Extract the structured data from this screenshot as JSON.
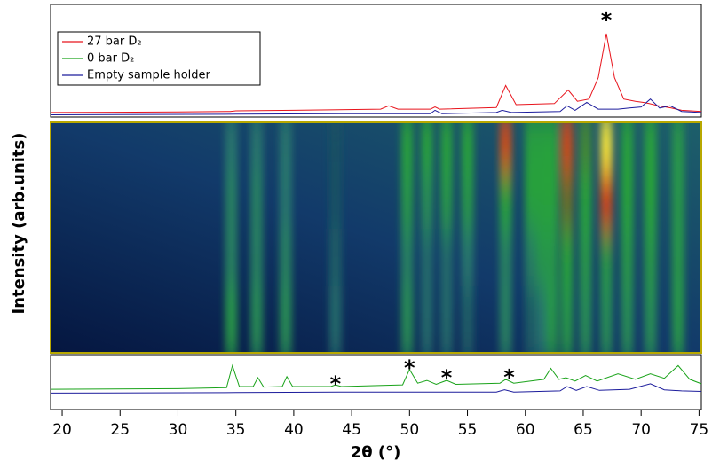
{
  "chart_data": {
    "type": "line",
    "xlabel": "2θ (°)",
    "ylabel": "Intensity (arb.units)",
    "xlim": [
      19,
      75.2
    ],
    "xticks": [
      20,
      25,
      30,
      35,
      40,
      45,
      50,
      55,
      60,
      65,
      70,
      75
    ],
    "ylim": [
      0,
      100
    ],
    "legend": "upper left",
    "series": [
      {
        "name": "27 bar D₂",
        "color": "#e8141c",
        "panel": "top",
        "x": [
          19,
          30,
          34.5,
          35,
          40,
          47.5,
          48.2,
          49,
          51.8,
          52.2,
          52.6,
          57.5,
          58.3,
          59.2,
          62.5,
          63.7,
          64.5,
          65.5,
          66.3,
          67,
          67.7,
          68.5,
          69.5,
          70.2,
          70.7,
          71.5,
          72.6,
          73.5,
          75.2
        ],
        "values": [
          4,
          4.5,
          5,
          5.5,
          6,
          7,
          10,
          7,
          7,
          9,
          7,
          8.5,
          28,
          11,
          12,
          24,
          14,
          16,
          35,
          74,
          35,
          16,
          14,
          13,
          12,
          10,
          8,
          6,
          5
        ]
      },
      {
        "name": "0 bar D₂",
        "color": "#1aa31a",
        "panel": "bottom",
        "x": [
          19,
          30,
          34.2,
          34.7,
          35.3,
          36.5,
          36.9,
          37.4,
          39,
          39.4,
          39.9,
          43.2,
          43.6,
          44.1,
          49.4,
          50,
          50.7,
          51.5,
          52.3,
          53.2,
          54,
          57.8,
          58.3,
          59,
          61.6,
          62.2,
          62.9,
          63.5,
          64.3,
          65.2,
          66.2,
          68,
          69.5,
          70.8,
          72,
          73.2,
          74.2,
          75.2
        ],
        "values": [
          37,
          38,
          40,
          80,
          42,
          42,
          58,
          41,
          42,
          60,
          42,
          42,
          45,
          42,
          45,
          73,
          48,
          53,
          46,
          53,
          46,
          48,
          55,
          48,
          55,
          75,
          55,
          58,
          52,
          62,
          52,
          65,
          55,
          65,
          57,
          80,
          55,
          47
        ]
      },
      {
        "name": "Empty sample holder",
        "color": "#1c1c9c",
        "panel": "top",
        "x": [
          19,
          35,
          45,
          51.8,
          52.2,
          52.8,
          57.5,
          58,
          58.8,
          63,
          63.6,
          64.3,
          65.3,
          66.3,
          68,
          69,
          70,
          70.8,
          71.6,
          72.5,
          73.5,
          75.2
        ],
        "values": [
          2,
          2.5,
          3,
          3,
          6,
          3,
          4,
          6,
          4,
          5,
          10,
          6,
          13,
          7,
          7,
          8,
          9,
          16,
          8,
          10,
          5,
          4
        ]
      },
      {
        "color": "#1c1c9c",
        "panel": "bottom",
        "x": [
          19,
          35,
          45,
          57.5,
          58.2,
          59,
          63,
          63.6,
          64.4,
          65.3,
          66.4,
          69,
          70.8,
          72,
          73.5,
          75.2
        ],
        "values": [
          30,
          31,
          32,
          32,
          36,
          32,
          34,
          42,
          35,
          42,
          35,
          37,
          47,
          36,
          34,
          33
        ]
      }
    ],
    "annotations": [
      {
        "text": "*",
        "x": 67,
        "y": 90,
        "panel": "top"
      },
      {
        "text": "*",
        "x": 43.6,
        "y": 55,
        "panel": "bottom"
      },
      {
        "text": "*",
        "x": 50,
        "y": 84,
        "panel": "bottom"
      },
      {
        "text": "*",
        "x": 53.2,
        "y": 66,
        "panel": "bottom"
      },
      {
        "text": "*",
        "x": 58.6,
        "y": 67,
        "panel": "bottom"
      }
    ],
    "heatmap": {
      "x": [
        34.6,
        36.8,
        39.3,
        43.6,
        49.8,
        51.5,
        53.2,
        55,
        58.3,
        60.5,
        61.5,
        62.3,
        63.6,
        65.2,
        67,
        68.8,
        70.8,
        73.2
      ],
      "rows": [
        [
          0.3,
          0.3,
          0.3,
          0.15,
          0.5,
          0.5,
          0.5,
          0.5,
          0.8,
          0.5,
          0.5,
          0.5,
          0.8,
          0.55,
          1.0,
          0.5,
          0.5,
          0.45
        ],
        [
          0.35,
          0.35,
          0.3,
          0.15,
          0.45,
          0.4,
          0.45,
          0.45,
          0.5,
          0.5,
          0.5,
          0.5,
          0.6,
          0.5,
          0.78,
          0.5,
          0.5,
          0.45
        ],
        [
          0.35,
          0.35,
          0.35,
          0.2,
          0.35,
          0.25,
          0.25,
          0.3,
          0.35,
          0.35,
          0.45,
          0.45,
          0.5,
          0.45,
          0.45,
          0.45,
          0.45,
          0.45
        ],
        [
          0.45,
          0.4,
          0.4,
          0.25,
          0.4,
          0.25,
          0.25,
          0.2,
          0.35,
          0.2,
          0.3,
          0.45,
          0.45,
          0.4,
          0.4,
          0.4,
          0.4,
          0.45
        ]
      ]
    }
  }
}
